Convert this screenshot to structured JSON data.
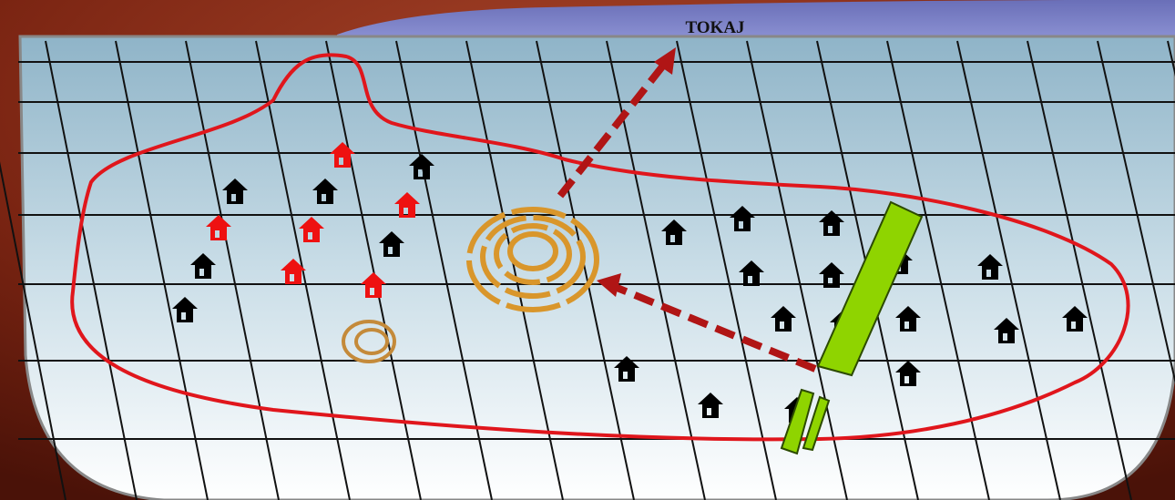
{
  "map": {
    "place_label": "TOKAJ"
  }
}
